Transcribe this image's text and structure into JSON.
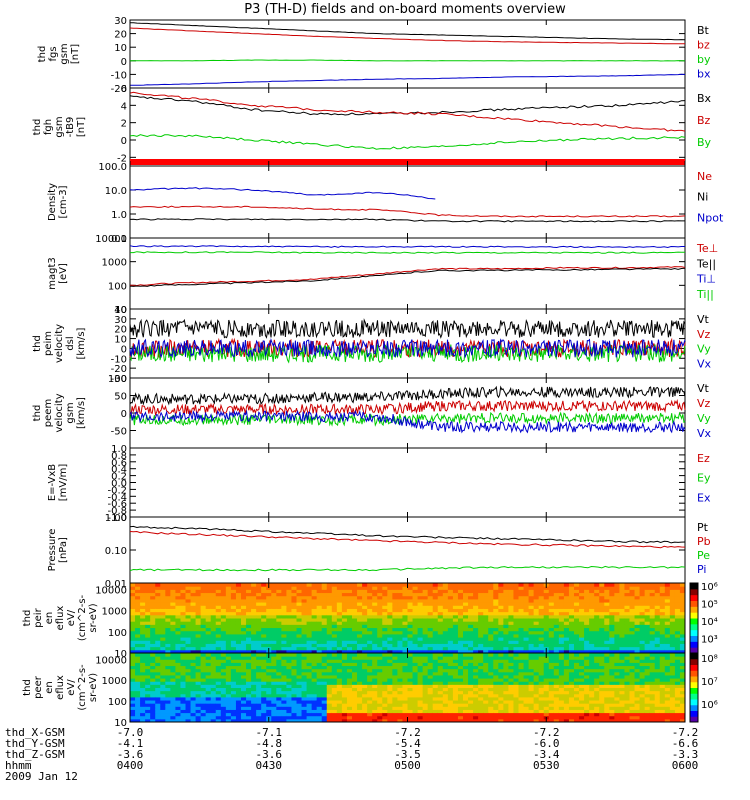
{
  "title": "P3 (TH-D) fields and on-board moments overview",
  "chart_data": [
    {
      "type": "line",
      "panel": "fgs",
      "ylabel": [
        "thd",
        "fgs",
        "gsm",
        "[nT]"
      ],
      "ylim": [
        -20,
        30
      ],
      "yticks": [
        -20,
        -10,
        0,
        10,
        20,
        30
      ],
      "series": [
        {
          "name": "Bt",
          "color": "#000000",
          "values": [
            28,
            26,
            24,
            22,
            20,
            19,
            18,
            17,
            16,
            15.5
          ]
        },
        {
          "name": "bz",
          "color": "#cc0000",
          "values": [
            24,
            22,
            20,
            18,
            16.5,
            15,
            14,
            13.5,
            13,
            12.5
          ]
        },
        {
          "name": "by",
          "color": "#00cc00",
          "values": [
            0,
            0,
            0.5,
            0.5,
            0,
            0,
            0,
            0,
            0,
            0
          ]
        },
        {
          "name": "bx",
          "color": "#0000cc",
          "values": [
            -18,
            -17,
            -15.5,
            -14.5,
            -13.5,
            -13,
            -12,
            -11.5,
            -11,
            -10
          ]
        }
      ]
    },
    {
      "type": "line",
      "panel": "fgh",
      "ylabel": [
        "thd",
        "fgh",
        "gsm",
        "-tB9",
        "[nT]"
      ],
      "ylim": [
        -3,
        6
      ],
      "yticks": [
        -2,
        0,
        2,
        4,
        6
      ],
      "series": [
        {
          "name": "Bx",
          "color": "#000000",
          "values": [
            5,
            4.5,
            3.5,
            3,
            3,
            3.2,
            3.5,
            3.8,
            4,
            4.5
          ]
        },
        {
          "name": "Bz",
          "color": "#cc0000",
          "values": [
            5.5,
            4.8,
            4,
            3.5,
            3.2,
            3,
            2.5,
            2,
            1.5,
            1
          ]
        },
        {
          "name": "By",
          "color": "#00cc00",
          "values": [
            0.5,
            0.5,
            0,
            -0.5,
            -1,
            -0.8,
            -0.3,
            0,
            0.2,
            0.3
          ]
        }
      ]
    },
    {
      "type": "line",
      "panel": "density",
      "ylabel": [
        "Density",
        "[cm-3]"
      ],
      "ylim": [
        0.1,
        100
      ],
      "yscale": "log",
      "yticks": [
        "0.1",
        "1.0",
        "10.0",
        "100.0"
      ],
      "series": [
        {
          "name": "Ne",
          "color": "#cc0000",
          "values": [
            2,
            2,
            2,
            1.6,
            1.5,
            0.9,
            0.8,
            0.8,
            0.8,
            0.8
          ]
        },
        {
          "name": "Ni",
          "color": "#000000",
          "values": [
            0.6,
            0.6,
            0.6,
            0.6,
            0.6,
            0.5,
            0.5,
            0.5,
            0.5,
            0.5
          ]
        },
        {
          "name": "Npot",
          "color": "#0000cc",
          "values": [
            10,
            12,
            10,
            6,
            8,
            4,
            null,
            null,
            null,
            null
          ]
        }
      ]
    },
    {
      "type": "line",
      "panel": "temperature",
      "ylabel": [
        "magt3",
        "[eV]"
      ],
      "ylim": [
        10,
        10000
      ],
      "yscale": "log",
      "yticks": [
        "10",
        "100",
        "1000",
        "10000"
      ],
      "series": [
        {
          "name": "Te⊥",
          "color": "#cc0000",
          "values": [
            100,
            130,
            150,
            180,
            300,
            500,
            500,
            550,
            550,
            600
          ]
        },
        {
          "name": "Te||",
          "color": "#000000",
          "values": [
            90,
            110,
            130,
            160,
            250,
            420,
            430,
            450,
            480,
            500
          ]
        },
        {
          "name": "Ti⊥",
          "color": "#0000cc",
          "values": [
            4500,
            4500,
            4400,
            4300,
            4300,
            4300,
            4200,
            4200,
            4200,
            4200
          ]
        },
        {
          "name": "Ti||",
          "color": "#00cc00",
          "values": [
            2500,
            2500,
            2500,
            2400,
            2400,
            2400,
            2400,
            2400,
            2400,
            2400
          ]
        }
      ]
    },
    {
      "type": "line",
      "panel": "velocity-ion",
      "ylabel": [
        "thd",
        "peim",
        "velocity",
        "dsl",
        "[km/s]"
      ],
      "ylim": [
        -30,
        40
      ],
      "yticks": [
        "-30",
        "-20",
        "-10",
        "0",
        "10",
        "20",
        "30",
        "40"
      ],
      "series": [
        {
          "name": "Vt",
          "color": "#000000",
          "values": [
            20,
            20,
            20,
            20,
            20,
            20,
            20,
            20,
            20,
            20
          ]
        },
        {
          "name": "Vz",
          "color": "#cc0000",
          "values": [
            0,
            0,
            0,
            0,
            0,
            0,
            0,
            0,
            0,
            0
          ]
        },
        {
          "name": "Vy",
          "color": "#00cc00",
          "values": [
            -5,
            -5,
            -5,
            -5,
            -5,
            -5,
            -5,
            -5,
            -5,
            -5
          ]
        },
        {
          "name": "Vx",
          "color": "#0000cc",
          "values": [
            0,
            0,
            0,
            0,
            0,
            0,
            0,
            0,
            0,
            0
          ]
        }
      ]
    },
    {
      "type": "line",
      "panel": "velocity-electron",
      "ylabel": [
        "thd",
        "peem",
        "velocity",
        "gsm",
        "[km/s]"
      ],
      "ylim": [
        -100,
        100
      ],
      "yticks": [
        "-50",
        "0",
        "50",
        "100"
      ],
      "series": [
        {
          "name": "Vt",
          "color": "#000000",
          "values": [
            40,
            40,
            40,
            45,
            45,
            55,
            60,
            60,
            60,
            60
          ]
        },
        {
          "name": "Vz",
          "color": "#cc0000",
          "values": [
            10,
            10,
            10,
            10,
            10,
            20,
            20,
            20,
            20,
            20
          ]
        },
        {
          "name": "Vy",
          "color": "#00cc00",
          "values": [
            -20,
            -20,
            -20,
            -20,
            -20,
            -15,
            -15,
            -15,
            -15,
            -15
          ]
        },
        {
          "name": "Vx",
          "color": "#0000cc",
          "values": [
            -10,
            -10,
            -10,
            -10,
            -10,
            -40,
            -40,
            -40,
            -40,
            -40
          ]
        }
      ]
    },
    {
      "type": "line",
      "panel": "efield",
      "ylabel": [
        "E=-VxB",
        "[mV/m]"
      ],
      "ylim": [
        -1,
        1
      ],
      "yticks": [
        "-1.0",
        "-0.8",
        "-0.6",
        "-0.4",
        "-0.2",
        "0.0",
        "0.2",
        "0.4",
        "0.6",
        "0.8",
        "1.0"
      ],
      "series": [
        {
          "name": "Ez",
          "color": "#cc0000",
          "values": []
        },
        {
          "name": "Ey",
          "color": "#00cc00",
          "values": []
        },
        {
          "name": "Ex",
          "color": "#0000cc",
          "values": []
        }
      ]
    },
    {
      "type": "line",
      "panel": "pressure",
      "ylabel": [
        "Pressure",
        "[nPa]"
      ],
      "ylim": [
        0.01,
        1
      ],
      "yscale": "log",
      "yticks": [
        "0.01",
        "0.10",
        "1.00"
      ],
      "series": [
        {
          "name": "Pt",
          "color": "#000000",
          "values": [
            0.5,
            0.45,
            0.38,
            0.32,
            0.27,
            0.24,
            0.22,
            0.2,
            0.18,
            0.17
          ]
        },
        {
          "name": "Pb",
          "color": "#cc0000",
          "values": [
            0.35,
            0.3,
            0.26,
            0.22,
            0.19,
            0.17,
            0.15,
            0.14,
            0.13,
            0.12
          ]
        },
        {
          "name": "Pe",
          "color": "#00cc00",
          "values": [
            0.025,
            0.025,
            0.025,
            0.025,
            0.025,
            0.028,
            0.03,
            0.03,
            0.03,
            0.03
          ]
        },
        {
          "name": "Pi",
          "color": "#0000cc",
          "values": []
        }
      ]
    },
    {
      "type": "heatmap",
      "panel": "ion-spectrogram",
      "ylabel": [
        "thd",
        "peir",
        "en",
        "eflux",
        "eV/",
        "(cm^2-s-",
        "sr-eV)"
      ],
      "yscale": "log",
      "yticks": [
        "10",
        "100",
        "1000",
        "10000"
      ],
      "colorbar_ticks": [
        "10³",
        "10⁴",
        "10⁵",
        "10⁶"
      ]
    },
    {
      "type": "heatmap",
      "panel": "electron-spectrogram",
      "ylabel": [
        "thd",
        "peer",
        "en",
        "eflux",
        "eV/",
        "(cm^2-s-",
        "sr-eV)"
      ],
      "yscale": "log",
      "yticks": [
        "10",
        "100",
        "1000",
        "10000"
      ],
      "colorbar_ticks": [
        "10⁶",
        "10⁷",
        "10⁸"
      ]
    }
  ],
  "xaxis": {
    "rows": [
      {
        "label": "thd_X-GSM",
        "values": [
          "-7.0",
          "-7.1",
          "-7.2",
          "-7.2",
          "-7.2"
        ]
      },
      {
        "label": "thd_Y-GSM",
        "values": [
          "-4.1",
          "-4.8",
          "-5.4",
          "-6.0",
          "-6.6"
        ]
      },
      {
        "label": "thd_Z-GSM",
        "values": [
          "-3.6",
          "-3.6",
          "-3.5",
          "-3.4",
          "-3.3"
        ]
      },
      {
        "label": "hhmm",
        "values": [
          "0400",
          "0430",
          "0500",
          "0530",
          "0600"
        ]
      }
    ],
    "date": "2009 Jan 12"
  }
}
